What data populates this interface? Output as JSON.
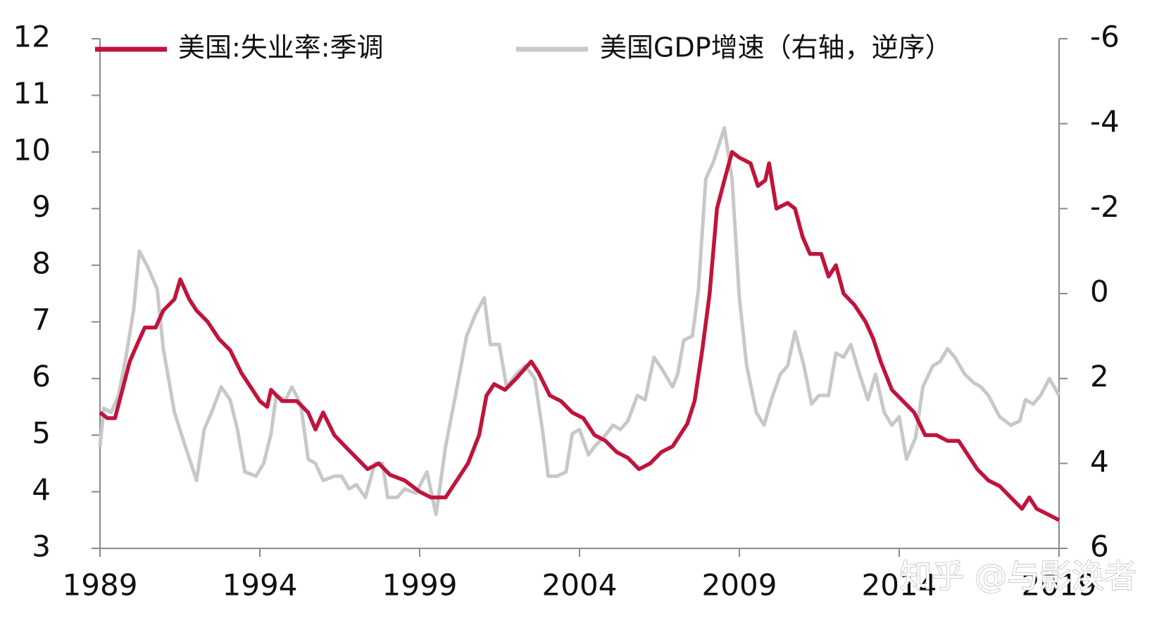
{
  "chart_data": {
    "type": "line",
    "legend_position": "top",
    "xlim": [
      1989,
      2019
    ],
    "xticks": [
      1989,
      1994,
      1999,
      2004,
      2009,
      2014,
      2019
    ],
    "ylim": [
      3,
      12
    ],
    "yticks": [
      3,
      4,
      5,
      6,
      7,
      8,
      9,
      10,
      11,
      12
    ],
    "y2lim": [
      -6,
      6
    ],
    "y2ticks": [
      -6,
      -4,
      -2,
      0,
      2,
      4,
      6
    ],
    "y2_reversed": true,
    "annotations": [
      "知乎 @与影涣者"
    ],
    "series": [
      {
        "name": "美国:失业率:季调",
        "color": "#c0143c",
        "axis": "y",
        "x": [
          1989.0,
          1989.23,
          1989.47,
          1989.7,
          1989.93,
          1990.16,
          1990.4,
          1990.74,
          1990.98,
          1991.33,
          1991.51,
          1991.79,
          1992.02,
          1992.37,
          1992.72,
          1993.07,
          1993.42,
          1993.77,
          1994.0,
          1994.23,
          1994.35,
          1994.7,
          1995.16,
          1995.51,
          1995.74,
          1995.98,
          1996.33,
          1996.67,
          1997.02,
          1997.37,
          1997.72,
          1998.07,
          1998.53,
          1999.0,
          1999.35,
          1999.81,
          2000.16,
          2000.51,
          2000.86,
          2001.09,
          2001.33,
          2001.67,
          2002.02,
          2002.49,
          2002.72,
          2003.07,
          2003.42,
          2003.77,
          2004.12,
          2004.47,
          2004.81,
          2005.16,
          2005.51,
          2005.86,
          2006.21,
          2006.56,
          2006.91,
          2007.14,
          2007.37,
          2007.6,
          2007.84,
          2008.07,
          2008.3,
          2008.53,
          2008.77,
          2009.0,
          2009.35,
          2009.58,
          2009.81,
          2009.93,
          2010.16,
          2010.51,
          2010.74,
          2010.98,
          2011.21,
          2011.56,
          2011.79,
          2012.02,
          2012.26,
          2012.6,
          2012.95,
          2013.19,
          2013.42,
          2013.77,
          2014.12,
          2014.47,
          2014.81,
          2015.16,
          2015.51,
          2015.86,
          2016.09,
          2016.44,
          2016.79,
          2017.14,
          2017.49,
          2017.84,
          2018.07,
          2018.3,
          2018.65,
          2019.0
        ],
        "values": [
          5.4,
          5.3,
          5.3,
          5.8,
          6.3,
          6.6,
          6.9,
          6.9,
          7.2,
          7.4,
          7.75,
          7.4,
          7.2,
          7.0,
          6.7,
          6.5,
          6.1,
          5.8,
          5.6,
          5.5,
          5.8,
          5.6,
          5.6,
          5.4,
          5.1,
          5.4,
          5.0,
          4.8,
          4.6,
          4.4,
          4.5,
          4.3,
          4.2,
          4.0,
          3.9,
          3.9,
          4.2,
          4.5,
          5.0,
          5.7,
          5.9,
          5.8,
          6.0,
          6.3,
          6.1,
          5.7,
          5.6,
          5.4,
          5.3,
          5.0,
          4.9,
          4.7,
          4.6,
          4.4,
          4.5,
          4.7,
          4.8,
          5.0,
          5.2,
          5.6,
          6.5,
          7.5,
          9.0,
          9.5,
          10.0,
          9.9,
          9.8,
          9.4,
          9.5,
          9.8,
          9.0,
          9.1,
          9.0,
          8.5,
          8.2,
          8.2,
          7.8,
          8.0,
          7.5,
          7.3,
          7.0,
          6.7,
          6.3,
          5.8,
          5.6,
          5.4,
          5.0,
          5.0,
          4.9,
          4.9,
          4.7,
          4.4,
          4.2,
          4.1,
          3.9,
          3.7,
          3.9,
          3.7,
          3.6,
          3.5
        ]
      },
      {
        "name": "美国GDP增速（右轴，逆序）",
        "color": "#c8c8c8",
        "axis": "y2",
        "x": [
          1989.0,
          1989.12,
          1989.35,
          1989.58,
          1989.81,
          1990.05,
          1990.23,
          1990.51,
          1990.79,
          1990.98,
          1991.33,
          1991.67,
          1992.02,
          1992.26,
          1992.49,
          1992.79,
          1993.07,
          1993.3,
          1993.53,
          1993.88,
          1994.12,
          1994.35,
          1994.51,
          1994.81,
          1995.0,
          1995.28,
          1995.51,
          1995.74,
          1995.98,
          1996.33,
          1996.56,
          1996.79,
          1997.02,
          1997.3,
          1997.6,
          1997.84,
          1998.0,
          1998.3,
          1998.53,
          1998.88,
          1999.23,
          1999.51,
          1999.81,
          2000.12,
          2000.47,
          2000.74,
          2001.02,
          2001.21,
          2001.49,
          2001.72,
          2002.02,
          2002.3,
          2002.6,
          2002.84,
          2003.02,
          2003.3,
          2003.58,
          2003.77,
          2004.0,
          2004.28,
          2004.47,
          2004.74,
          2005.05,
          2005.28,
          2005.51,
          2005.81,
          2006.05,
          2006.33,
          2006.6,
          2006.91,
          2007.07,
          2007.26,
          2007.53,
          2007.72,
          2007.95,
          2008.19,
          2008.53,
          2008.77,
          2009.0,
          2009.23,
          2009.53,
          2009.77,
          2010.0,
          2010.28,
          2010.51,
          2010.74,
          2011.02,
          2011.26,
          2011.49,
          2011.79,
          2012.02,
          2012.26,
          2012.49,
          2012.72,
          2013.02,
          2013.26,
          2013.53,
          2013.77,
          2014.0,
          2014.23,
          2014.51,
          2014.74,
          2015.05,
          2015.28,
          2015.51,
          2015.74,
          2016.05,
          2016.33,
          2016.56,
          2016.79,
          2017.14,
          2017.49,
          2017.77,
          2017.95,
          2018.19,
          2018.42,
          2018.7,
          2019.0
        ],
        "values": [
          3.6,
          2.7,
          2.8,
          2.4,
          1.5,
          0.4,
          -1.0,
          -0.6,
          -0.1,
          1.3,
          2.8,
          3.6,
          4.4,
          3.2,
          2.8,
          2.2,
          2.5,
          3.2,
          4.2,
          4.3,
          4.0,
          3.3,
          2.4,
          2.5,
          2.2,
          2.6,
          3.9,
          4.0,
          4.4,
          4.3,
          4.3,
          4.6,
          4.5,
          4.8,
          4.0,
          4.0,
          4.8,
          4.8,
          4.6,
          4.7,
          4.2,
          5.2,
          3.6,
          2.4,
          1.0,
          0.5,
          0.1,
          1.2,
          1.2,
          2.2,
          1.9,
          1.7,
          2.0,
          3.2,
          4.3,
          4.3,
          4.2,
          3.3,
          3.2,
          3.8,
          3.6,
          3.4,
          3.1,
          3.2,
          3.0,
          2.4,
          2.5,
          1.5,
          1.8,
          2.2,
          1.9,
          1.1,
          1.0,
          -0.1,
          -2.7,
          -3.1,
          -3.9,
          -2.7,
          0.1,
          1.7,
          2.8,
          3.1,
          2.5,
          1.9,
          1.7,
          0.9,
          1.7,
          2.6,
          2.4,
          2.4,
          1.4,
          1.5,
          1.2,
          1.8,
          2.5,
          1.9,
          2.8,
          3.1,
          2.9,
          3.9,
          3.4,
          2.2,
          1.7,
          1.6,
          1.3,
          1.5,
          1.9,
          2.1,
          2.2,
          2.4,
          2.9,
          3.1,
          3.0,
          2.5,
          2.6,
          2.4,
          2.0,
          2.4
        ]
      }
    ]
  }
}
